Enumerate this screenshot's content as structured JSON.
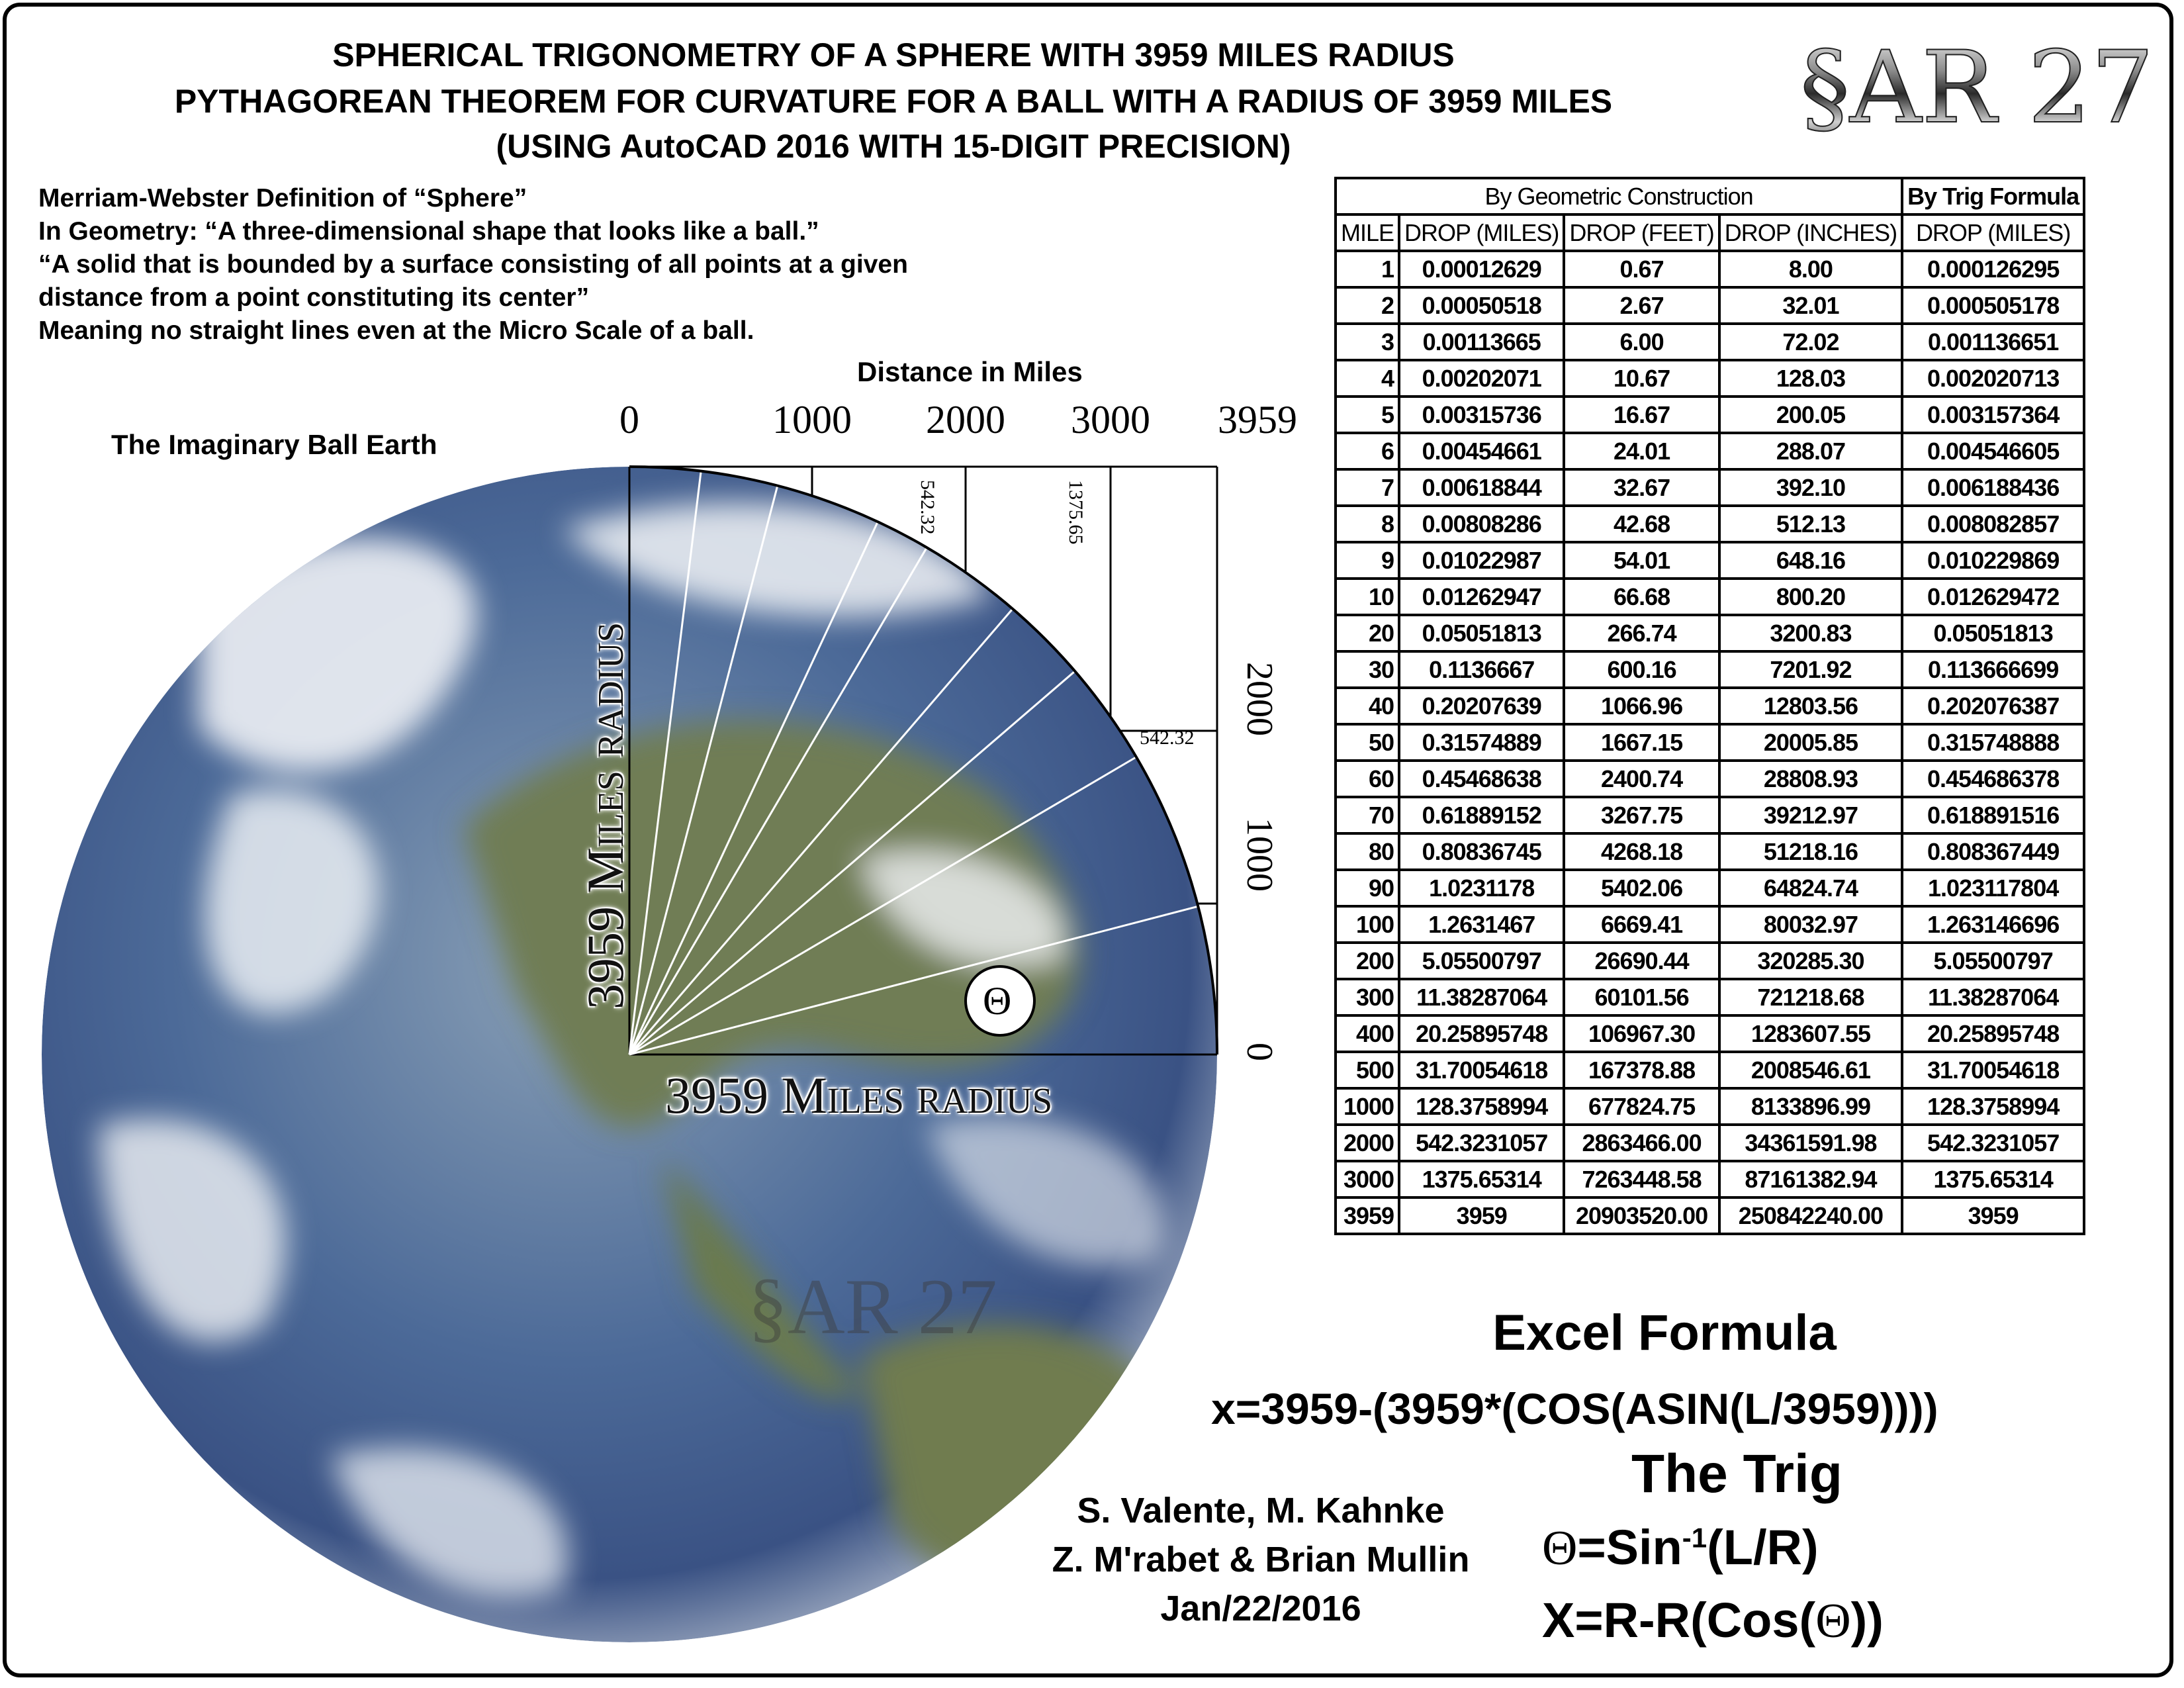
{
  "title_lines": [
    "SPHERICAL TRIGONOMETRY OF A SPHERE WITH 3959 MILES RADIUS",
    "PYTHAGOREAN THEOREM FOR CURVATURE FOR A BALL WITH A RADIUS OF 3959 MILES",
    "(USING AutoCAD 2016 WITH 15-DIGIT PRECISION)"
  ],
  "logo": "§AR 27",
  "watermark": "§AR 27",
  "definition_lines": [
    "Merriam-Webster Definition of “Sphere”",
    "In Geometry: “A three-dimensional shape that looks like a ball.”",
    "“A solid that is bounded by a surface consisting of all points at a given",
    "distance from a point constituting its center”",
    "Meaning no straight lines even at the Micro Scale of a ball."
  ],
  "diagram": {
    "x_axis_title": "Distance in Miles",
    "x_ticks": [
      "0",
      "1000",
      "2000",
      "3000",
      "3959"
    ],
    "y_ticks": [
      "2000",
      "1000",
      "0"
    ],
    "earth_label": "The Imaginary Ball Earth",
    "vertical_radius_label": "3959 Miles radius",
    "horizontal_radius_label": "3959 Miles radius",
    "drop_label_2000": "542.32",
    "drop_label_3000": "1375.65",
    "side_label_2000": "542.32",
    "theta_symbol": "Θ",
    "colors": {
      "ocean": "#3d5f94",
      "land": "#6e7f52",
      "cloud": "#f2f4f7"
    }
  },
  "table": {
    "group_headers": [
      "By Geometric Construction",
      "By Trig Formula"
    ],
    "columns": [
      "MILE",
      "DROP (MILES)",
      "DROP (FEET)",
      "DROP (INCHES)",
      "DROP (MILES)"
    ],
    "rows": [
      [
        "1",
        "0.00012629",
        "0.67",
        "8.00",
        "0.000126295"
      ],
      [
        "2",
        "0.00050518",
        "2.67",
        "32.01",
        "0.000505178"
      ],
      [
        "3",
        "0.00113665",
        "6.00",
        "72.02",
        "0.001136651"
      ],
      [
        "4",
        "0.00202071",
        "10.67",
        "128.03",
        "0.002020713"
      ],
      [
        "5",
        "0.00315736",
        "16.67",
        "200.05",
        "0.003157364"
      ],
      [
        "6",
        "0.00454661",
        "24.01",
        "288.07",
        "0.004546605"
      ],
      [
        "7",
        "0.00618844",
        "32.67",
        "392.10",
        "0.006188436"
      ],
      [
        "8",
        "0.00808286",
        "42.68",
        "512.13",
        "0.008082857"
      ],
      [
        "9",
        "0.01022987",
        "54.01",
        "648.16",
        "0.010229869"
      ],
      [
        "10",
        "0.01262947",
        "66.68",
        "800.20",
        "0.012629472"
      ],
      [
        "20",
        "0.05051813",
        "266.74",
        "3200.83",
        "0.05051813"
      ],
      [
        "30",
        "0.1136667",
        "600.16",
        "7201.92",
        "0.113666699"
      ],
      [
        "40",
        "0.20207639",
        "1066.96",
        "12803.56",
        "0.202076387"
      ],
      [
        "50",
        "0.31574889",
        "1667.15",
        "20005.85",
        "0.315748888"
      ],
      [
        "60",
        "0.45468638",
        "2400.74",
        "28808.93",
        "0.454686378"
      ],
      [
        "70",
        "0.61889152",
        "3267.75",
        "39212.97",
        "0.618891516"
      ],
      [
        "80",
        "0.80836745",
        "4268.18",
        "51218.16",
        "0.808367449"
      ],
      [
        "90",
        "1.0231178",
        "5402.06",
        "64824.74",
        "1.023117804"
      ],
      [
        "100",
        "1.2631467",
        "6669.41",
        "80032.97",
        "1.263146696"
      ],
      [
        "200",
        "5.05500797",
        "26690.44",
        "320285.30",
        "5.05500797"
      ],
      [
        "300",
        "11.38287064",
        "60101.56",
        "721218.68",
        "11.38287064"
      ],
      [
        "400",
        "20.25895748",
        "106967.30",
        "1283607.55",
        "20.25895748"
      ],
      [
        "500",
        "31.70054618",
        "167378.88",
        "2008546.61",
        "31.70054618"
      ],
      [
        "1000",
        "128.3758994",
        "677824.75",
        "8133896.99",
        "128.3758994"
      ],
      [
        "2000",
        "542.3231057",
        "2863466.00",
        "34361591.98",
        "542.3231057"
      ],
      [
        "3000",
        "1375.65314",
        "7263448.58",
        "87161382.94",
        "1375.65314"
      ],
      [
        "3959",
        "3959",
        "20903520.00",
        "250842240.00",
        "3959"
      ]
    ]
  },
  "formulas": {
    "excel_heading": "Excel Formula",
    "excel_formula": "x=3959-(3959*(COS(ASIN(L/3959))))",
    "trig_heading": "The Trig",
    "theta": "Θ",
    "theta_formula_prefix": "=Sin",
    "theta_formula_sup": "-1",
    "theta_formula_suffix": "(L/R)",
    "x_formula_prefix": "X=R-R(Cos(",
    "x_formula_suffix": "))"
  },
  "authors": [
    "S. Valente, M. Kahnke",
    "Z. M'rabet & Brian Mullin",
    "Jan/22/2016"
  ]
}
